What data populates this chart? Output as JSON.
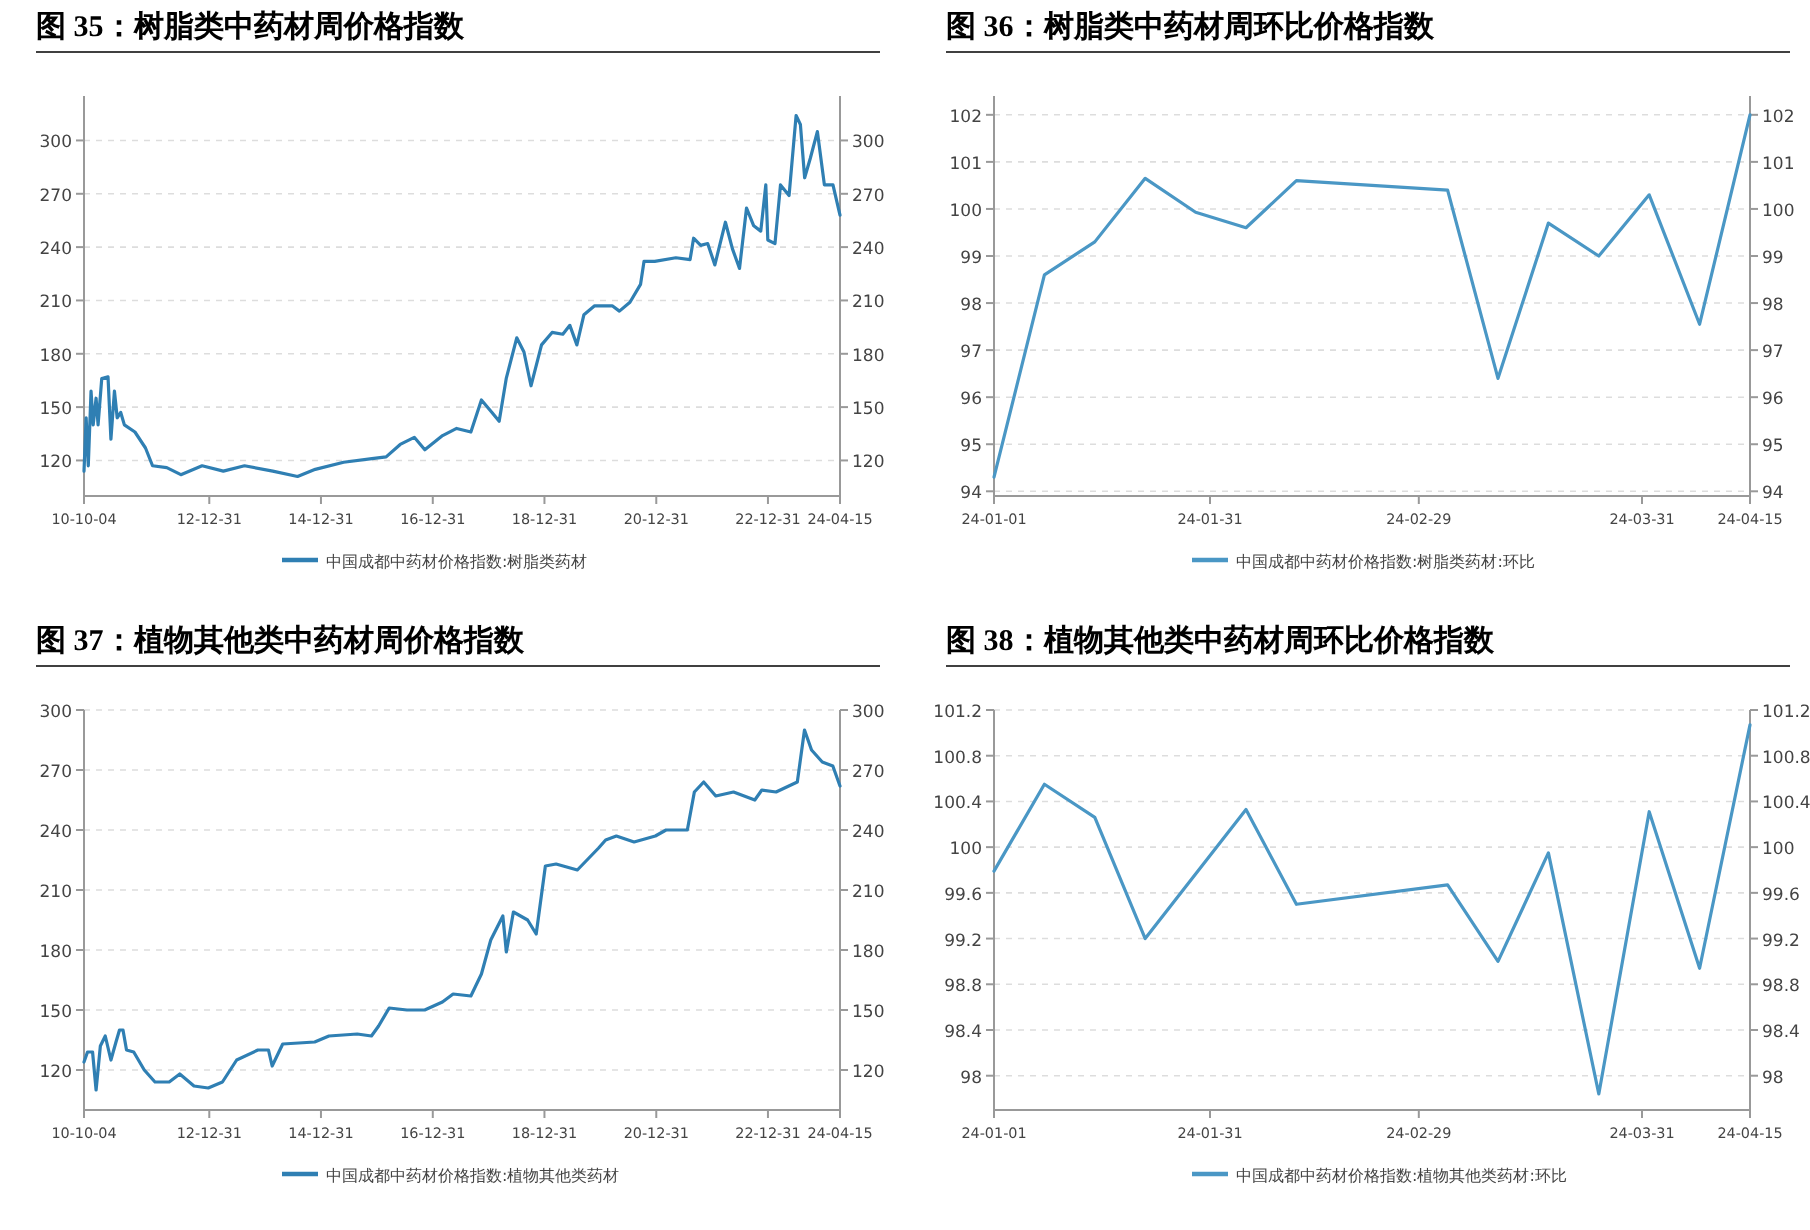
{
  "chart_data": [
    {
      "type": "line",
      "title": "图 35：树脂类中药材周价格指数",
      "x": [
        "2010-10-04",
        "2010-10-18",
        "2010-11-01",
        "2010-11-19",
        "2010-12-03",
        "2010-12-22",
        "2011-01-04",
        "2011-01-28",
        "2011-03-10",
        "2011-03-29",
        "2011-04-21",
        "2011-05-09",
        "2011-06-01",
        "2011-06-25",
        "2011-09-02",
        "2011-11-10",
        "2011-12-26",
        "2012-03-28",
        "2012-06-28",
        "2012-11-14",
        "2013-04-02",
        "2013-08-18",
        "2014-02-19",
        "2014-07-31",
        "2014-11-24",
        "2015-05-28",
        "2015-11-29",
        "2016-03-01",
        "2016-06-01",
        "2016-09-01",
        "2016-11-09",
        "2017-03-05",
        "2017-06-05",
        "2017-09-06",
        "2017-11-14",
        "2018-01-22",
        "2018-03-10",
        "2018-04-25",
        "2018-07-03",
        "2018-08-19",
        "2018-10-04",
        "2018-12-12",
        "2019-02-19",
        "2019-04-30",
        "2019-06-15",
        "2019-07-31",
        "2019-09-15",
        "2019-11-24",
        "2020-03-18",
        "2020-05-04",
        "2020-07-12",
        "2020-09-19",
        "2020-10-12",
        "2020-12-21",
        "2021-05-08",
        "2021-08-09",
        "2021-09-01",
        "2021-10-17",
        "2021-12-02",
        "2022-01-18",
        "2022-03-28",
        "2022-05-13",
        "2022-06-28",
        "2022-08-13",
        "2022-09-29",
        "2022-11-14",
        "2022-12-17",
        "2022-12-30",
        "2023-02-15",
        "2023-03-23",
        "2023-05-18",
        "2023-07-03",
        "2023-07-31",
        "2023-08-28",
        "2023-10-04",
        "2023-11-19",
        "2024-01-04",
        "2024-02-29",
        "2024-04-15"
      ],
      "series": [
        {
          "name": "中国成都中药材价格指数:树脂类药材",
          "color": "#2f7fb3",
          "values": [
            114,
            144,
            117,
            159,
            140,
            155,
            140,
            166,
            167,
            132,
            159,
            144,
            147,
            140,
            136,
            127,
            117,
            116,
            112,
            117,
            114,
            117,
            114,
            111,
            115,
            119,
            121,
            122,
            129,
            133,
            126,
            134,
            138,
            136,
            154,
            147,
            142,
            166,
            189,
            181,
            162,
            185,
            192,
            191,
            196,
            185,
            202,
            207,
            207,
            204,
            209,
            219,
            232,
            232,
            234,
            233,
            245,
            241,
            242,
            230,
            254,
            239,
            228,
            262,
            252,
            249,
            275,
            244,
            242,
            275,
            269,
            314,
            309,
            279,
            290,
            305,
            275,
            275,
            258
          ]
        }
      ],
      "xlim": [
        "2010-10-04",
        "2024-04-15"
      ],
      "xticks": [
        {
          "value": "2010-10-04",
          "label": "10-10-04"
        },
        {
          "value": "2012-12-31",
          "label": "12-12-31"
        },
        {
          "value": "2014-12-31",
          "label": "14-12-31"
        },
        {
          "value": "2016-12-31",
          "label": "16-12-31"
        },
        {
          "value": "2018-12-31",
          "label": "18-12-31"
        },
        {
          "value": "2020-12-31",
          "label": "20-12-31"
        },
        {
          "value": "2022-12-31",
          "label": "22-12-31"
        },
        {
          "value": "2024-04-15",
          "label": "24-04-15"
        }
      ],
      "ylim": [
        100,
        325
      ],
      "yticks": [
        120,
        150,
        180,
        210,
        240,
        270,
        300
      ],
      "y2lim": [
        100,
        325
      ],
      "y2ticks": [
        120,
        150,
        180,
        210,
        240,
        270,
        300
      ],
      "grid": "y",
      "legend": "bottom"
    },
    {
      "type": "line",
      "title": "图 36：树脂类中药材周环比价格指数",
      "x": [
        "--01-01",
        "--01-08",
        "--01-15",
        "--01-22",
        "--01-29",
        "--02-05",
        "--02-12",
        "--03-04",
        "--03-11",
        "--03-18",
        "--03-25",
        "--04-01",
        "--04-08",
        "--04-15"
      ],
      "series": [
        {
          "name": "中国成都中药材价格指数:树脂类药材:环比",
          "color": "#4a97c5",
          "values": [
            94.3,
            98.6,
            99.3,
            100.65,
            99.93,
            99.6,
            100.6,
            100.4,
            96.4,
            99.7,
            99.0,
            100.3,
            97.55,
            102.0
          ]
        }
      ],
      "xlim": [
        "--01-01",
        "--04-15"
      ],
      "xticks": [
        {
          "value": "--01-01",
          "label": "24-01-01"
        },
        {
          "value": "--01-31",
          "label": "24-01-31"
        },
        {
          "value": "--02-29",
          "label": "24-02-29"
        },
        {
          "value": "--03-31",
          "label": "24-03-31"
        },
        {
          "value": "--04-15",
          "label": "24-04-15"
        }
      ],
      "ylim": [
        93.9,
        102.4
      ],
      "yticks": [
        94,
        95,
        96,
        97,
        98,
        99,
        100,
        101,
        102
      ],
      "y2lim": [
        93.9,
        102.4
      ],
      "y2ticks": [
        94,
        95,
        96,
        97,
        98,
        99,
        100,
        101,
        102
      ],
      "grid": "y",
      "legend": "bottom"
    },
    {
      "type": "line",
      "title": "图 37：植物其他类中药材周价格指数",
      "x": [
        "2010-10-04",
        "2010-10-27",
        "2010-11-29",
        "2010-12-22",
        "2011-01-19",
        "2011-02-20",
        "2011-03-29",
        "2011-05-01",
        "2011-05-24",
        "2011-06-16",
        "2011-07-09",
        "2011-08-25",
        "2011-11-02",
        "2012-01-11",
        "2012-04-13",
        "2012-06-21",
        "2012-09-22",
        "2012-12-24",
        "2013-03-27",
        "2013-06-28",
        "2013-11-14",
        "2014-01-22",
        "2014-02-15",
        "2014-04-25",
        "2014-11-20",
        "2015-02-21",
        "2015-08-25",
        "2015-11-26",
        "2016-01-12",
        "2016-03-21",
        "2016-07-15",
        "2016-11-08",
        "2017-03-04",
        "2017-05-13",
        "2017-09-06",
        "2017-11-14",
        "2018-01-14",
        "2018-04-03",
        "2018-04-26",
        "2018-06-11",
        "2018-09-12",
        "2018-11-07",
        "2019-01-06",
        "2019-03-17",
        "2019-08-03",
        "2019-12-20",
        "2020-02-04",
        "2020-04-14",
        "2020-08-08",
        "2020-12-25",
        "2021-03-05",
        "2021-07-22",
        "2021-09-06",
        "2021-11-06",
        "2022-01-24",
        "2022-05-20",
        "2022-10-06",
        "2022-11-21",
        "2023-02-22",
        "2023-07-11",
        "2023-08-27",
        "2023-10-12",
        "2023-12-21",
        "2024-02-28",
        "2024-04-15"
      ],
      "series": [
        {
          "name": "中国成都中药材价格指数:植物其他类药材",
          "color": "#2f7fb3",
          "values": [
            124,
            129,
            129,
            110,
            132,
            137,
            125,
            134,
            140,
            140,
            130,
            129,
            120,
            114,
            114,
            118,
            112,
            111,
            114,
            125,
            130,
            130,
            122,
            133,
            134,
            137,
            138,
            137,
            142,
            151,
            150,
            150,
            154,
            158,
            157,
            168,
            185,
            197,
            179,
            199,
            195,
            188,
            222,
            223,
            220,
            231,
            235,
            237,
            234,
            237,
            240,
            240,
            259,
            264,
            257,
            259,
            255,
            260,
            259,
            264,
            290,
            280,
            274,
            272,
            262
          ]
        }
      ],
      "xlim": [
        "2010-10-04",
        "2024-04-15"
      ],
      "xticks": [
        {
          "value": "2010-10-04",
          "label": "10-10-04"
        },
        {
          "value": "2012-12-31",
          "label": "12-12-31"
        },
        {
          "value": "2014-12-31",
          "label": "14-12-31"
        },
        {
          "value": "2016-12-31",
          "label": "16-12-31"
        },
        {
          "value": "2018-12-31",
          "label": "18-12-31"
        },
        {
          "value": "2020-12-31",
          "label": "20-12-31"
        },
        {
          "value": "2022-12-31",
          "label": "22-12-31"
        },
        {
          "value": "2024-04-15",
          "label": "24-04-15"
        }
      ],
      "ylim": [
        100,
        300
      ],
      "yticks": [
        120,
        150,
        180,
        210,
        240,
        270,
        300
      ],
      "y2lim": [
        100,
        300
      ],
      "y2ticks": [
        120,
        150,
        180,
        210,
        240,
        270,
        300
      ],
      "grid": "y",
      "legend": "bottom"
    },
    {
      "type": "line",
      "title": "图 38：植物其他类中药材周环比价格指数",
      "x": [
        "--01-01",
        "--01-08",
        "--01-15",
        "--01-22",
        "--02-05",
        "--02-12",
        "--03-04",
        "--03-11",
        "--03-18",
        "--03-25",
        "--04-01",
        "--04-08",
        "--04-15"
      ],
      "series": [
        {
          "name": "中国成都中药材价格指数:植物其他类药材:环比",
          "color": "#4a97c5",
          "values": [
            99.79,
            100.55,
            100.26,
            99.2,
            100.33,
            99.5,
            99.67,
            99.0,
            99.95,
            97.84,
            100.31,
            98.94,
            101.07
          ]
        }
      ],
      "xlim": [
        "--01-01",
        "--04-15"
      ],
      "xticks": [
        {
          "value": "--01-01",
          "label": "24-01-01"
        },
        {
          "value": "--01-31",
          "label": "24-01-31"
        },
        {
          "value": "--02-29",
          "label": "24-02-29"
        },
        {
          "value": "--03-31",
          "label": "24-03-31"
        },
        {
          "value": "--04-15",
          "label": "24-04-15"
        }
      ],
      "ylim": [
        97.7,
        101.2
      ],
      "yticks": [
        98,
        98.4,
        98.8,
        99.2,
        99.6,
        100,
        100.4,
        100.8,
        101.2
      ],
      "y2lim": [
        97.7,
        101.2
      ],
      "y2ticks": [
        98,
        98.4,
        98.8,
        99.2,
        99.6,
        100,
        100.4,
        100.8,
        101.2
      ],
      "grid": "y",
      "legend": "bottom"
    }
  ]
}
